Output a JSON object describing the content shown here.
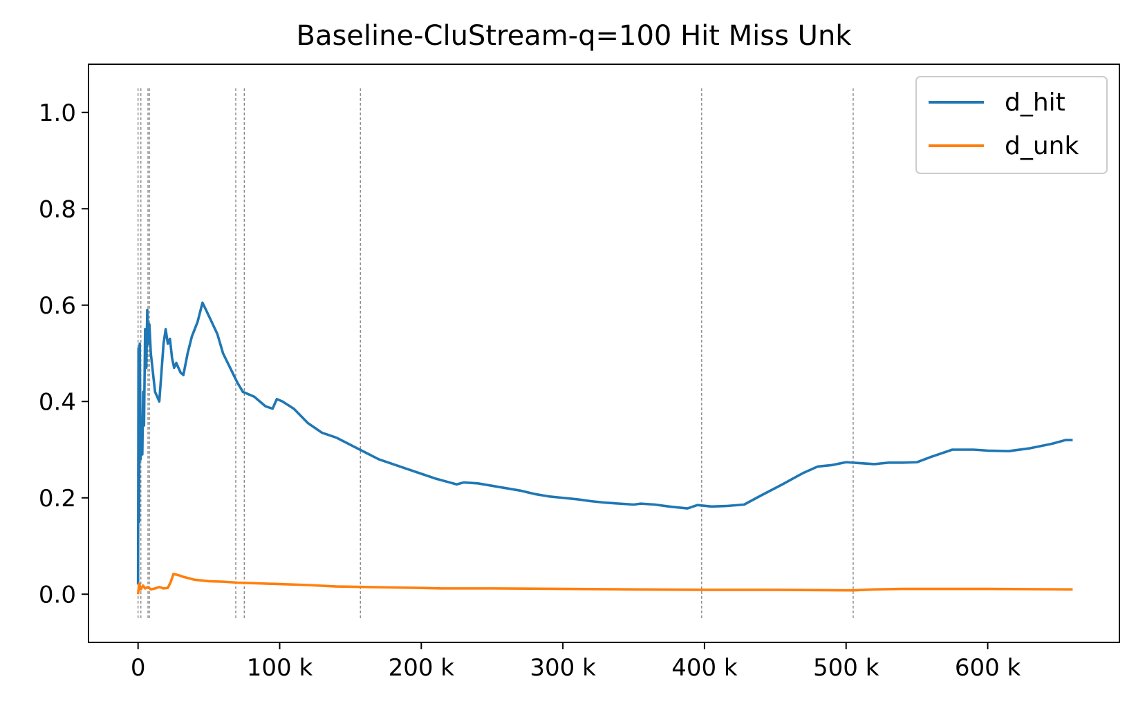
{
  "chart_data": {
    "type": "line",
    "title": "Baseline-CluStream-q=100 Hit Miss Unk",
    "xlabel": "",
    "ylabel": "",
    "xlim": [
      -35000,
      693000
    ],
    "ylim": [
      -0.1,
      1.1
    ],
    "xticks": [
      0,
      100000,
      200000,
      300000,
      400000,
      500000,
      600000
    ],
    "xtick_labels": [
      "0",
      "100 k",
      "200 k",
      "300 k",
      "400 k",
      "500 k",
      "600 k"
    ],
    "yticks": [
      0.0,
      0.2,
      0.4,
      0.6,
      0.8,
      1.0
    ],
    "ytick_labels": [
      "0.0",
      "0.2",
      "0.4",
      "0.6",
      "0.8",
      "1.0"
    ],
    "grid": false,
    "legend_position": "upper-right",
    "vlines": [
      0,
      2000,
      7000,
      8000,
      69000,
      75000,
      157000,
      398000,
      505000
    ],
    "vline_range": [
      -0.05,
      1.05
    ],
    "vline_color": "#7f7f7f",
    "series": [
      {
        "name": "d_hit",
        "color": "#1f77b4",
        "points": [
          [
            0,
            0.02
          ],
          [
            300,
            0.51
          ],
          [
            700,
            0.15
          ],
          [
            1200,
            0.52
          ],
          [
            1800,
            0.28
          ],
          [
            2300,
            0.35
          ],
          [
            3000,
            0.29
          ],
          [
            3600,
            0.42
          ],
          [
            4200,
            0.35
          ],
          [
            5000,
            0.55
          ],
          [
            5800,
            0.47
          ],
          [
            6500,
            0.59
          ],
          [
            7200,
            0.52
          ],
          [
            8000,
            0.56
          ],
          [
            9000,
            0.5
          ],
          [
            10500,
            0.46
          ],
          [
            12000,
            0.42
          ],
          [
            13500,
            0.41
          ],
          [
            15000,
            0.4
          ],
          [
            16500,
            0.46
          ],
          [
            18000,
            0.52
          ],
          [
            19500,
            0.55
          ],
          [
            21000,
            0.52
          ],
          [
            22500,
            0.53
          ],
          [
            24000,
            0.49
          ],
          [
            25500,
            0.47
          ],
          [
            27000,
            0.48
          ],
          [
            28500,
            0.47
          ],
          [
            30000,
            0.46
          ],
          [
            32000,
            0.455
          ],
          [
            35000,
            0.5
          ],
          [
            38000,
            0.535
          ],
          [
            42000,
            0.565
          ],
          [
            45500,
            0.605
          ],
          [
            48000,
            0.59
          ],
          [
            52000,
            0.565
          ],
          [
            56000,
            0.54
          ],
          [
            60000,
            0.5
          ],
          [
            65000,
            0.47
          ],
          [
            70000,
            0.44
          ],
          [
            74000,
            0.42
          ],
          [
            78000,
            0.415
          ],
          [
            82000,
            0.41
          ],
          [
            86000,
            0.4
          ],
          [
            90000,
            0.39
          ],
          [
            95000,
            0.385
          ],
          [
            98000,
            0.405
          ],
          [
            102000,
            0.4
          ],
          [
            110000,
            0.385
          ],
          [
            120000,
            0.355
          ],
          [
            130000,
            0.335
          ],
          [
            140000,
            0.325
          ],
          [
            150000,
            0.31
          ],
          [
            160000,
            0.295
          ],
          [
            170000,
            0.28
          ],
          [
            180000,
            0.27
          ],
          [
            190000,
            0.26
          ],
          [
            200000,
            0.25
          ],
          [
            210000,
            0.24
          ],
          [
            220000,
            0.232
          ],
          [
            225000,
            0.228
          ],
          [
            230000,
            0.232
          ],
          [
            240000,
            0.23
          ],
          [
            250000,
            0.225
          ],
          [
            260000,
            0.22
          ],
          [
            270000,
            0.215
          ],
          [
            280000,
            0.208
          ],
          [
            290000,
            0.203
          ],
          [
            300000,
            0.2
          ],
          [
            310000,
            0.197
          ],
          [
            320000,
            0.193
          ],
          [
            330000,
            0.19
          ],
          [
            340000,
            0.188
          ],
          [
            350000,
            0.186
          ],
          [
            355000,
            0.188
          ],
          [
            365000,
            0.186
          ],
          [
            375000,
            0.182
          ],
          [
            388000,
            0.178
          ],
          [
            395000,
            0.185
          ],
          [
            405000,
            0.182
          ],
          [
            415000,
            0.183
          ],
          [
            428000,
            0.186
          ],
          [
            440000,
            0.205
          ],
          [
            455000,
            0.228
          ],
          [
            470000,
            0.252
          ],
          [
            480000,
            0.265
          ],
          [
            490000,
            0.268
          ],
          [
            500000,
            0.274
          ],
          [
            510000,
            0.272
          ],
          [
            520000,
            0.27
          ],
          [
            530000,
            0.273
          ],
          [
            540000,
            0.273
          ],
          [
            550000,
            0.274
          ],
          [
            560000,
            0.285
          ],
          [
            575000,
            0.3
          ],
          [
            590000,
            0.3
          ],
          [
            600000,
            0.298
          ],
          [
            615000,
            0.297
          ],
          [
            630000,
            0.303
          ],
          [
            645000,
            0.312
          ],
          [
            655000,
            0.32
          ],
          [
            660000,
            0.32
          ]
        ]
      },
      {
        "name": "d_unk",
        "color": "#ff7f0e",
        "points": [
          [
            0,
            0.0
          ],
          [
            800,
            0.022
          ],
          [
            2000,
            0.01
          ],
          [
            3500,
            0.018
          ],
          [
            5000,
            0.012
          ],
          [
            7000,
            0.015
          ],
          [
            9000,
            0.01
          ],
          [
            12000,
            0.012
          ],
          [
            15000,
            0.015
          ],
          [
            18000,
            0.012
          ],
          [
            21000,
            0.013
          ],
          [
            23000,
            0.025
          ],
          [
            25000,
            0.042
          ],
          [
            28000,
            0.04
          ],
          [
            32000,
            0.036
          ],
          [
            40000,
            0.03
          ],
          [
            50000,
            0.027
          ],
          [
            60000,
            0.026
          ],
          [
            70000,
            0.024
          ],
          [
            80000,
            0.023
          ],
          [
            90000,
            0.022
          ],
          [
            100000,
            0.021
          ],
          [
            120000,
            0.019
          ],
          [
            140000,
            0.016
          ],
          [
            160000,
            0.015
          ],
          [
            180000,
            0.014
          ],
          [
            200000,
            0.013
          ],
          [
            215000,
            0.012
          ],
          [
            250000,
            0.012
          ],
          [
            300000,
            0.011
          ],
          [
            350000,
            0.01
          ],
          [
            400000,
            0.009
          ],
          [
            450000,
            0.009
          ],
          [
            505000,
            0.008
          ],
          [
            520000,
            0.01
          ],
          [
            540000,
            0.011
          ],
          [
            600000,
            0.011
          ],
          [
            660000,
            0.01
          ]
        ]
      }
    ]
  }
}
